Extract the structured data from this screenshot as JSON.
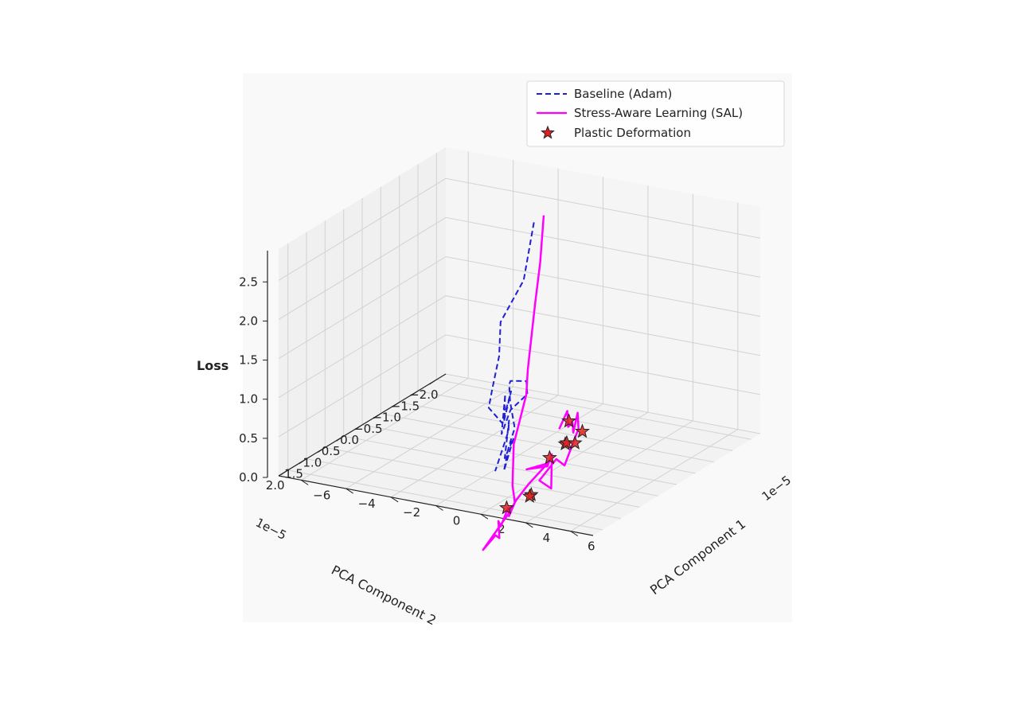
{
  "chart_data": {
    "type": "line3d",
    "xlabel": "PCA Component 1",
    "ylabel": "PCA Component 2",
    "zlabel": "Loss",
    "x_offset_label": "1e−5",
    "y_offset_label": "1e−5",
    "xticks": [
      "−6",
      "−4",
      "−2",
      "0",
      "2",
      "4",
      "6"
    ],
    "yticks": [
      "−2.0",
      "−1.5",
      "−1.0",
      "−0.5",
      "0.0",
      "0.5",
      "1.0",
      "1.5",
      "2.0"
    ],
    "zticks": [
      "0.0",
      "0.5",
      "1.0",
      "1.5",
      "2.0",
      "2.5"
    ],
    "legend": {
      "placement": "top-right",
      "entries": [
        {
          "label": "Baseline (Adam)",
          "style": "dashed-line",
          "color": "#1f1fd6"
        },
        {
          "label": "Stress-Aware Learning (SAL)",
          "style": "solid-line",
          "color": "#ff00ff"
        },
        {
          "label": "Plastic Deformation",
          "style": "star-marker",
          "color": "#e02020"
        }
      ]
    },
    "colors": {
      "baseline": "#1f1fd6",
      "sal": "#ff00ff",
      "star": "#e02020"
    },
    "series": [
      {
        "name": "Baseline (Adam)",
        "points": [
          [
            -2.0,
            -1.6,
            2.4
          ],
          [
            -1.3,
            -0.9,
            1.9
          ],
          [
            -1.5,
            -0.4,
            1.5
          ],
          [
            -1.4,
            -0.3,
            1.1
          ],
          [
            -2.2,
            -0.6,
            0.55
          ],
          [
            -1.7,
            -0.2,
            0.45
          ],
          [
            -0.6,
            0.1,
            0.4
          ],
          [
            -1.2,
            -0.5,
            0.6
          ],
          [
            -0.2,
            0.3,
            0.5
          ],
          [
            -0.8,
            -0.1,
            0.7
          ],
          [
            0.2,
            0.6,
            0.45
          ],
          [
            -0.4,
            0.0,
            0.55
          ],
          [
            -1.8,
            -1.3,
            0.3
          ],
          [
            -3.0,
            -2.0,
            0.2
          ],
          [
            -4.2,
            -2.3,
            0.05
          ],
          [
            -3.6,
            -1.9,
            0.15
          ],
          [
            -2.4,
            -1.2,
            0.2
          ],
          [
            -1.2,
            -0.6,
            0.1
          ],
          [
            -0.4,
            0.0,
            0.15
          ],
          [
            0.3,
            0.5,
            0.2
          ],
          [
            0.8,
            0.9,
            0.1
          ],
          [
            0.4,
            0.4,
            0.35
          ],
          [
            1.0,
            1.0,
            0.3
          ],
          [
            -0.3,
            0.1,
            0.45
          ],
          [
            0.5,
            0.6,
            0.5
          ],
          [
            1.4,
            1.5,
            0.3
          ]
        ]
      },
      {
        "name": "Stress-Aware Learning (SAL)",
        "points": [
          [
            -1.4,
            -1.5,
            2.55
          ],
          [
            -0.4,
            -0.8,
            2.2
          ],
          [
            0.2,
            -0.3,
            1.85
          ],
          [
            1.2,
            0.5,
            1.3
          ],
          [
            0.8,
            0.3,
            0.9
          ],
          [
            1.4,
            1.0,
            0.5
          ],
          [
            3.0,
            2.0,
            0.35
          ],
          [
            3.6,
            2.3,
            0.25
          ],
          [
            3.5,
            2.4,
            0.1
          ],
          [
            2.8,
            2.0,
            0.05
          ],
          [
            3.8,
            2.8,
            0.1
          ],
          [
            3.2,
            2.5,
            0.05
          ],
          [
            4.4,
            3.2,
            0.1
          ],
          [
            3.9,
            3.0,
            0.05
          ],
          [
            4.5,
            3.7,
            0.1
          ],
          [
            3.8,
            2.6,
            0.2
          ],
          [
            3.5,
            2.2,
            0.25
          ],
          [
            3.7,
            2.0,
            0.4
          ],
          [
            3.4,
            1.3,
            0.45
          ],
          [
            2.8,
            1.5,
            0.4
          ],
          [
            2.9,
            1.0,
            0.3
          ],
          [
            2.6,
            0.7,
            0.35
          ],
          [
            3.4,
            1.2,
            0.1
          ],
          [
            3.2,
            1.4,
            0.25
          ],
          [
            2.8,
            0.7,
            0.3
          ],
          [
            3.0,
            0.6,
            0.2
          ],
          [
            2.3,
            -0.2,
            0.4
          ],
          [
            1.6,
            -0.6,
            0.45
          ],
          [
            1.9,
            -0.3,
            0.3
          ],
          [
            2.2,
            -0.1,
            0.5
          ],
          [
            2.5,
            0.2,
            0.55
          ],
          [
            1.8,
            -0.2,
            0.6
          ],
          [
            2.1,
            0.2,
            0.5
          ]
        ]
      }
    ],
    "plastic_deformation_points": [
      [
        3.4,
        2.4,
        0.2
      ],
      [
        3.5,
        1.8,
        0.2
      ],
      [
        3.1,
        1.6,
        0.1
      ],
      [
        2.8,
        0.0,
        0.45
      ],
      [
        2.7,
        0.4,
        0.4
      ],
      [
        2.6,
        0.3,
        0.38
      ],
      [
        2.8,
        0.2,
        0.36
      ],
      [
        2.5,
        0.7,
        0.3
      ],
      [
        2.2,
        0.0,
        0.55
      ]
    ]
  }
}
